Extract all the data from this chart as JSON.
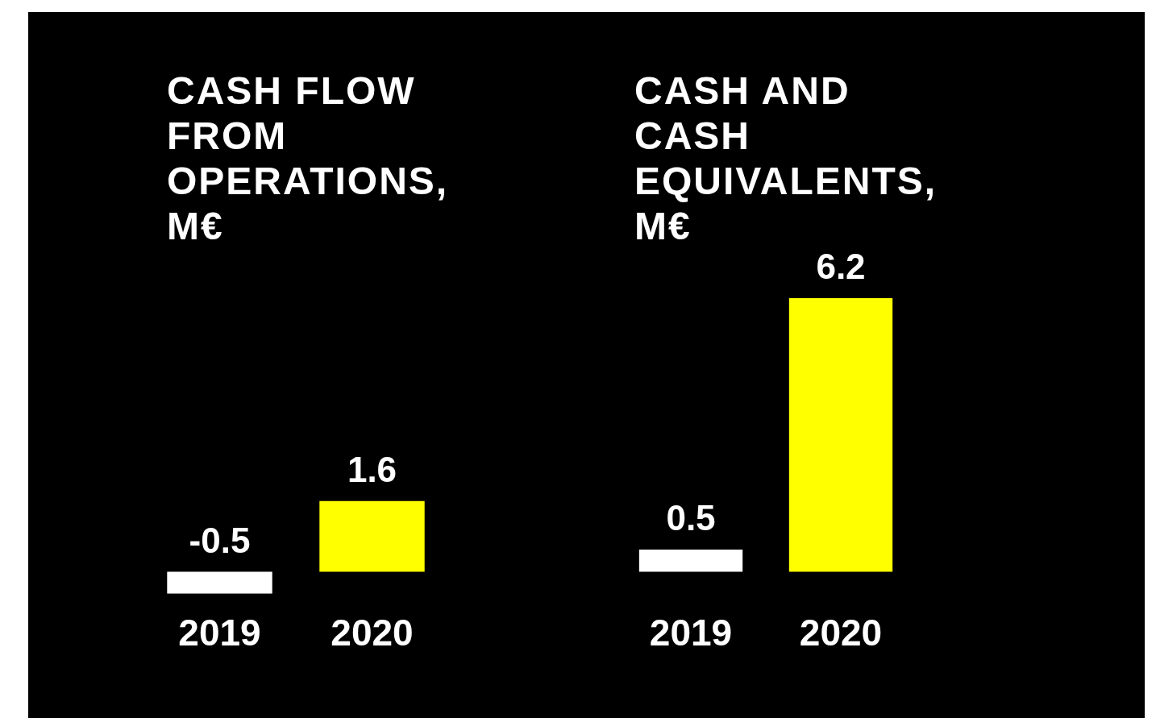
{
  "chart_data": [
    {
      "type": "bar",
      "title": "CASH FLOW FROM OPERATIONS, M€",
      "categories": [
        "2019",
        "2020"
      ],
      "values": [
        -0.5,
        1.6
      ],
      "colors": [
        "#ffffff",
        "#ffff00"
      ],
      "data_labels": true,
      "legend": false
    },
    {
      "type": "bar",
      "title": "CASH AND CASH EQUIVALENTS, M€",
      "categories": [
        "2019",
        "2020"
      ],
      "values": [
        0.5,
        6.2
      ],
      "colors": [
        "#ffffff",
        "#ffff00"
      ],
      "data_labels": true,
      "legend": false
    }
  ]
}
